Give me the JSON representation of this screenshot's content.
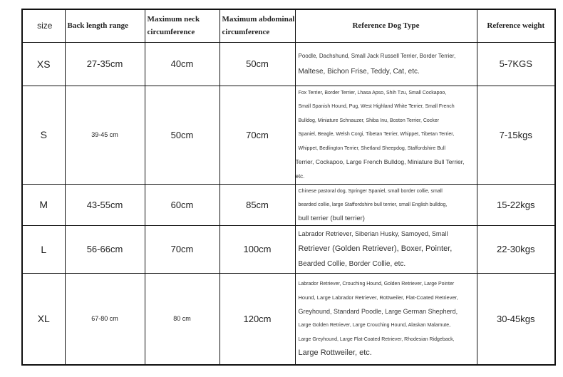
{
  "headers": [
    "size",
    "Back length range",
    "Maximum neck circumference",
    "Maximum abdominal circumference",
    "Reference Dog Type",
    "Reference weight"
  ],
  "rows": [
    {
      "size": "XS",
      "back": "27-35cm",
      "neck": "40cm",
      "abdominal": "50cm",
      "dog_lines": [
        "Poodle, Dachshund, Small Jack Russell Terrier, Border Terrier,",
        "Maltese, Bichon Frise, Teddy, Cat, etc."
      ],
      "weight": "5-7KGS"
    },
    {
      "size": "S",
      "back": "39-45 cm",
      "neck": "50cm",
      "abdominal": "70cm",
      "dog_lines": [
        "Fox Terrier, Border Terrier, Lhasa Apso, Shih Tzu, Small Cockapoo,",
        "Small Spanish Hound, Pug, West Highland White Terrier, Small French",
        "Bulldog, Miniature Schnauzer, Shiba Inu, Boston Terrier, Cocker",
        "Spaniel, Beagle, Welsh Corgi, Tibetan Terrier, Whippet, Tibetan Terrier,",
        "Whippet, Bedlington Terrier, Shetland Sheepdog, Staffordshire Bull",
        "Terrier, Cockapoo, Large French Bulldog, Miniature Bull Terrier,",
        "etc."
      ],
      "weight": "7-15kgs"
    },
    {
      "size": "M",
      "back": "43-55cm",
      "neck": "60cm",
      "abdominal": "85cm",
      "dog_lines": [
        "Chinese pastoral dog, Springer Spaniel, small border collie, small",
        "bearded collie, large Staffordshire bull terrier, small English bulldog,",
        "bull terrier (bull terrier)"
      ],
      "weight": "15-22kgs"
    },
    {
      "size": "L",
      "back": "56-66cm",
      "neck": "70cm",
      "abdominal": "100cm",
      "dog_lines": [
        "Labrador Retriever, Siberian Husky, Samoyed, Small",
        "Retriever (Golden Retriever), Boxer, Pointer,",
        "Bearded Collie, Border Collie, etc."
      ],
      "weight": "22-30kgs"
    },
    {
      "size": "XL",
      "back": "67-80 cm",
      "neck": "80 cm",
      "abdominal": "120cm",
      "dog_lines": [
        "Labrador Retriever, Crouching Hound, Golden Retriever, Large Pointer",
        "Hound, Large Labrador Retriever, Rottweiler, Flat-Coated Retriever,",
        "Greyhound, Standard Poodle, Large German Shepherd,",
        "Large Golden Retriever, Large Crouching Hound, Alaskan Malamute,",
        "Large Greyhound, Large Flat-Coated Retriever, Rhodesian Ridgeback,",
        "Large Rottweiler, etc."
      ],
      "weight": "30-45kgs"
    }
  ]
}
